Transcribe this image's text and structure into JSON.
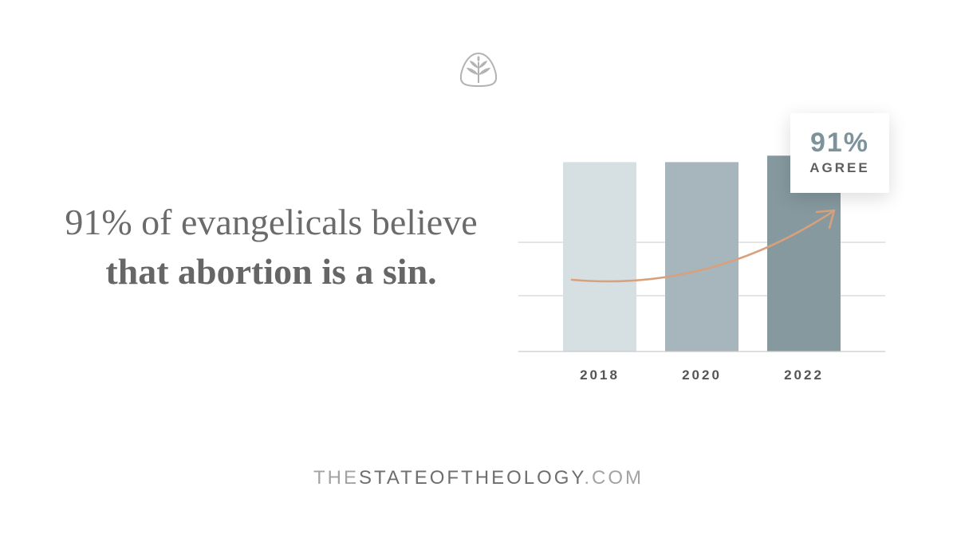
{
  "headline": {
    "part1": "91% of evangelicals believe ",
    "part2_bold": "that abortion is a sin."
  },
  "callout": {
    "value": "91%",
    "label": "AGREE"
  },
  "footer": {
    "prefix": "THE",
    "middle": "STATEOFTHEOLOGY",
    "suffix": ".COM"
  },
  "colors": {
    "bar_2018": "#d6dfe2",
    "bar_2020": "#a6b6bc",
    "bar_2022": "#85999f",
    "trend_arrow": "#d9a07c",
    "gridline": "#c9c9c9",
    "logo": "#b3b3b3"
  },
  "chart_data": {
    "type": "bar",
    "categories": [
      "2018",
      "2020",
      "2022"
    ],
    "values": [
      88,
      88,
      91
    ],
    "ylim": [
      0,
      100
    ],
    "title": "",
    "xlabel": "",
    "ylabel": "",
    "grid": true,
    "annotations": [
      "91% AGREE",
      "upward trend arrow"
    ]
  }
}
